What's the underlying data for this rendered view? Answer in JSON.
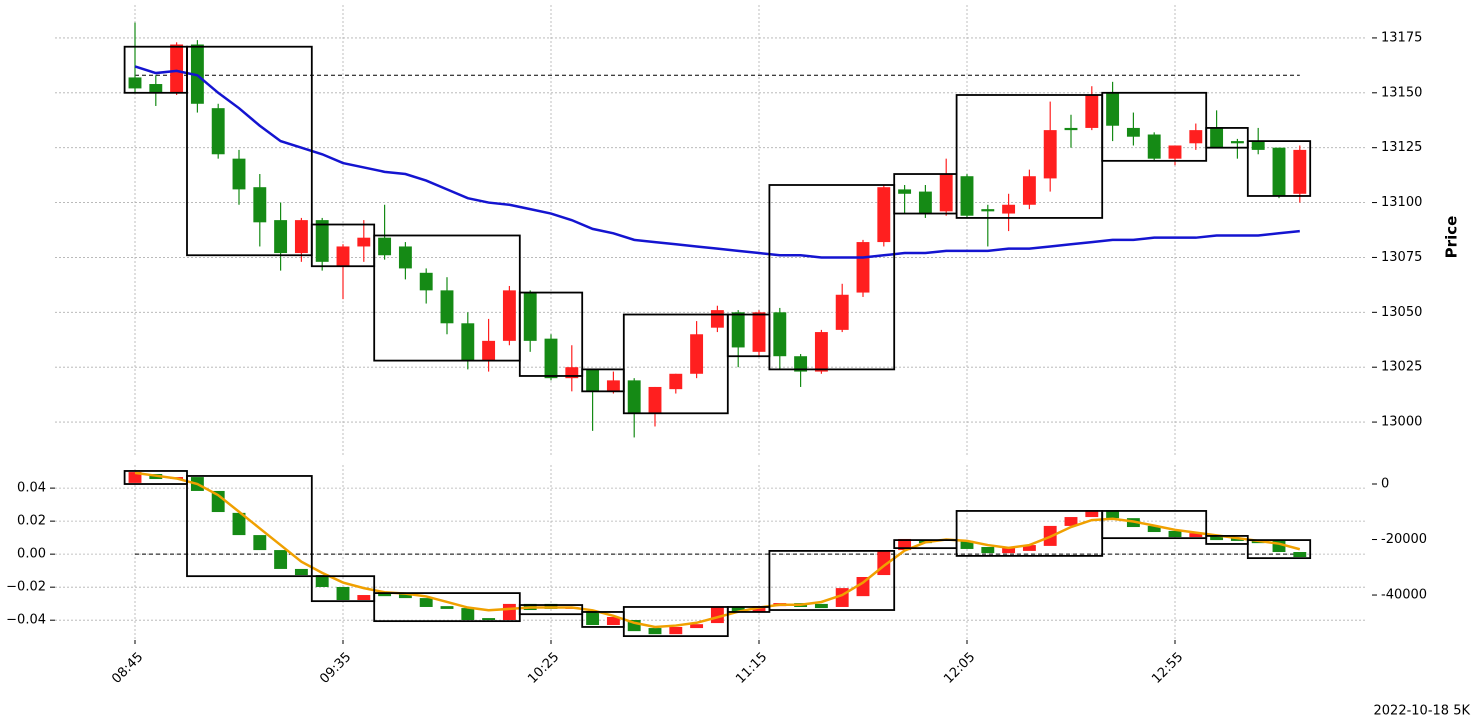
{
  "footer": "2022-10-18 5K",
  "chart_data": [
    {
      "type": "candlestick",
      "ylabel": "Price",
      "grid": true,
      "ylim": [
        12985,
        13190
      ],
      "yticks": [
        13000,
        13025,
        13050,
        13075,
        13100,
        13125,
        13150,
        13175
      ],
      "up_color": "#ff1f1f",
      "down_color": "#158a15",
      "candles": {
        "open": [
          13157,
          13154,
          13150,
          13172,
          13143,
          13120,
          13107,
          13092,
          13077,
          13092,
          13071,
          13080,
          13084,
          13080,
          13068,
          13060,
          13045,
          13028,
          13037,
          13059,
          13038,
          13020,
          13024,
          13014,
          13019,
          13004,
          13015,
          13022,
          13043,
          13050,
          13032,
          13050,
          13030,
          13023,
          13042,
          13059,
          13082,
          13106,
          13105,
          13096,
          13112,
          13097,
          13095,
          13099,
          13111,
          13134,
          13134,
          13150,
          13134,
          13131,
          13120,
          13127,
          13134,
          13128,
          13128,
          13125,
          13104
        ],
        "high": [
          13182,
          13158,
          13173,
          13174,
          13145,
          13124,
          13113,
          13100,
          13093,
          13093,
          13081,
          13092,
          13099,
          13082,
          13070,
          13066,
          13050,
          13047,
          13062,
          13060,
          13040,
          13035,
          13024,
          13023,
          13020,
          13016,
          13022,
          13046,
          13053,
          13051,
          13051,
          13052,
          13031,
          13042,
          13063,
          13083,
          13108,
          13108,
          13108,
          13120,
          13113,
          13099,
          13104,
          13115,
          13146,
          13140,
          13153,
          13155,
          13141,
          13132,
          13126,
          13136,
          13142,
          13129,
          13134,
          13125,
          13126
        ],
        "low": [
          13150,
          13144,
          13149,
          13141,
          13120,
          13099,
          13080,
          13069,
          13073,
          13069,
          13056,
          13073,
          13074,
          13065,
          13054,
          13040,
          13024,
          13023,
          13035,
          13032,
          13019,
          13014,
          12996,
          13013,
          12993,
          12998,
          13013,
          13020,
          13041,
          13025,
          13030,
          13024,
          13016,
          13022,
          13041,
          13057,
          13080,
          13095,
          13093,
          13094,
          13093,
          13080,
          13087,
          13097,
          13105,
          13125,
          13133,
          13128,
          13126,
          13119,
          13117,
          13124,
          13125,
          13120,
          13122,
          13102,
          13100
        ],
        "close": [
          13152,
          13150,
          13172,
          13145,
          13122,
          13106,
          13091,
          13077,
          13092,
          13073,
          13080,
          13084,
          13076,
          13070,
          13060,
          13045,
          13028,
          13037,
          13060,
          13037,
          13020,
          13025,
          13014,
          13019,
          13004,
          13016,
          13022,
          13040,
          13051,
          13034,
          13050,
          13030,
          13023,
          13041,
          13058,
          13082,
          13107,
          13104,
          13095,
          13113,
          13094,
          13096,
          13099,
          13112,
          13133,
          13133,
          13149,
          13135,
          13130,
          13120,
          13126,
          13133,
          13125,
          13127,
          13124,
          13103,
          13124
        ]
      },
      "lines": [
        {
          "color": "#1414d0",
          "values": [
            13162,
            13159,
            13160,
            13158,
            13150,
            13143,
            13135,
            13128,
            13125,
            13122,
            13118,
            13116,
            13114,
            13113,
            13110,
            13106,
            13102,
            13100,
            13099,
            13097,
            13095,
            13092,
            13088,
            13086,
            13083,
            13082,
            13081,
            13080,
            13079,
            13078,
            13077,
            13076,
            13076,
            13075,
            13075,
            13075,
            13076,
            13077,
            13077,
            13078,
            13078,
            13078,
            13079,
            13079,
            13080,
            13081,
            13082,
            13083,
            13083,
            13084,
            13084,
            13084,
            13085,
            13085,
            13085,
            13086,
            13087
          ]
        }
      ],
      "hline": 13158,
      "boxes": {
        "items": [
          {
            "start": 0,
            "end": 2,
            "low": 13150,
            "high": 13171
          },
          {
            "start": 3,
            "end": 8,
            "low": 13076,
            "high": 13171
          },
          {
            "start": 9,
            "end": 11,
            "low": 13071,
            "high": 13090
          },
          {
            "start": 12,
            "end": 18,
            "low": 13028,
            "high": 13085
          },
          {
            "start": 19,
            "end": 21,
            "low": 13021,
            "high": 13059
          },
          {
            "start": 22,
            "end": 23,
            "low": 13014,
            "high": 13024
          },
          {
            "start": 24,
            "end": 28,
            "low": 13004,
            "high": 13049
          },
          {
            "start": 29,
            "end": 30,
            "low": 13030,
            "high": 13049
          },
          {
            "start": 31,
            "end": 36,
            "low": 13024,
            "high": 13108
          },
          {
            "start": 37,
            "end": 39,
            "low": 13095,
            "high": 13113
          },
          {
            "start": 40,
            "end": 46,
            "low": 13093,
            "high": 13149
          },
          {
            "start": 47,
            "end": 51,
            "low": 13119,
            "high": 13150
          },
          {
            "start": 52,
            "end": 53,
            "low": 13125,
            "high": 13134
          },
          {
            "start": 54,
            "end": 56,
            "low": 13103,
            "high": 13128
          }
        ]
      }
    },
    {
      "type": "candlestick",
      "grid": true,
      "categories": [
        "08:45",
        null,
        null,
        null,
        null,
        null,
        null,
        null,
        null,
        null,
        "09:35",
        null,
        null,
        null,
        null,
        null,
        null,
        null,
        null,
        null,
        "10:25",
        null,
        null,
        null,
        null,
        null,
        null,
        null,
        null,
        null,
        "11:15",
        null,
        null,
        null,
        null,
        null,
        null,
        null,
        null,
        null,
        "12:05",
        null,
        null,
        null,
        null,
        null,
        null,
        null,
        null,
        null,
        "12:55",
        null,
        null,
        null,
        null,
        null,
        null
      ],
      "ylim": [
        -0.052,
        0.054
      ],
      "yticks": [
        {
          "value": -0.04,
          "label": "−0.04"
        },
        {
          "value": -0.02,
          "label": "−0.02"
        },
        {
          "value": 0,
          "label": "0.00"
        },
        {
          "value": 0.02,
          "label": "0.02"
        },
        {
          "value": 0.04,
          "label": "0.04"
        }
      ],
      "y2lim": [
        -56200,
        6850
      ],
      "y2ticks": [
        -40000,
        -20000,
        0
      ],
      "up_color": "#ff1f1f",
      "down_color": "#158a15",
      "candles": {
        "axis": "y2",
        "open": [
          400,
          3600,
          1800,
          2500,
          -2500,
          -10400,
          -18400,
          -23800,
          -30600,
          -32800,
          -37100,
          -41800,
          -38900,
          -39600,
          -41100,
          -44000,
          -44700,
          -48300,
          -49000,
          -43200,
          -43200,
          -45000,
          -45800,
          -50800,
          -49000,
          -51900,
          -54100,
          -51900,
          -50100,
          -44300,
          -46100,
          -44000,
          -42900,
          -43200,
          -44300,
          -40400,
          -32800,
          -23800,
          -20200,
          -19800,
          -20500,
          -22700,
          -24900,
          -24100,
          -22300,
          -15100,
          -11900,
          -9400,
          -12300,
          -15100,
          -16900,
          -19100,
          -18400,
          -19500,
          -20200,
          -20500,
          -24500
        ],
        "close": [
          4300,
          1800,
          2500,
          -2500,
          -10100,
          -18400,
          -23800,
          -30600,
          -32800,
          -37100,
          -41800,
          -40000,
          -40400,
          -41100,
          -44300,
          -45000,
          -49000,
          -49000,
          -43200,
          -45400,
          -45000,
          -44300,
          -50800,
          -47900,
          -53000,
          -54100,
          -51500,
          -50500,
          -44300,
          -46100,
          -44000,
          -42900,
          -44300,
          -44700,
          -37500,
          -33500,
          -23800,
          -19800,
          -21300,
          -20500,
          -23400,
          -24900,
          -22700,
          -22000,
          -15100,
          -11900,
          -9400,
          -12300,
          -15500,
          -17300,
          -19100,
          -17700,
          -20200,
          -20500,
          -21300,
          -24500,
          -26300
        ]
      },
      "lines": [
        {
          "axis": "y2",
          "color": "#f0a000",
          "values": [
            4000,
            3000,
            2000,
            0,
            -4000,
            -10000,
            -16000,
            -22000,
            -28000,
            -32000,
            -35500,
            -37500,
            -39000,
            -39500,
            -40500,
            -42500,
            -44500,
            -45500,
            -45000,
            -44500,
            -44500,
            -44500,
            -45500,
            -47500,
            -50000,
            -51500,
            -51000,
            -50000,
            -48000,
            -46000,
            -44500,
            -43500,
            -43500,
            -42500,
            -40000,
            -35500,
            -29500,
            -24000,
            -21000,
            -20000,
            -20500,
            -22000,
            -23000,
            -22000,
            -19000,
            -15500,
            -13000,
            -12500,
            -13500,
            -15000,
            -16500,
            -17500,
            -18500,
            -19500,
            -20500,
            -21500,
            -23500
          ]
        }
      ],
      "hline": 0,
      "boxes": {
        "axis": "y2",
        "items": [
          {
            "start": 0,
            "end": 2,
            "low": 0,
            "high": 4700
          },
          {
            "start": 3,
            "end": 8,
            "low": -33200,
            "high": 2900
          },
          {
            "start": 9,
            "end": 11,
            "low": -42200,
            "high": -33200
          },
          {
            "start": 12,
            "end": 18,
            "low": -49400,
            "high": -39300
          },
          {
            "start": 19,
            "end": 21,
            "low": -46900,
            "high": -43600
          },
          {
            "start": 22,
            "end": 23,
            "low": -51500,
            "high": -46100
          },
          {
            "start": 24,
            "end": 28,
            "low": -54800,
            "high": -44300
          },
          {
            "start": 29,
            "end": 30,
            "low": -46100,
            "high": -44300
          },
          {
            "start": 31,
            "end": 36,
            "low": -45400,
            "high": -24100
          },
          {
            "start": 37,
            "end": 39,
            "low": -23100,
            "high": -20200
          },
          {
            "start": 40,
            "end": 46,
            "low": -25900,
            "high": -9700
          },
          {
            "start": 47,
            "end": 51,
            "low": -19500,
            "high": -9700
          },
          {
            "start": 52,
            "end": 53,
            "low": -21600,
            "high": -18700
          },
          {
            "start": 54,
            "end": 56,
            "low": -26700,
            "high": -20200
          }
        ]
      }
    }
  ]
}
